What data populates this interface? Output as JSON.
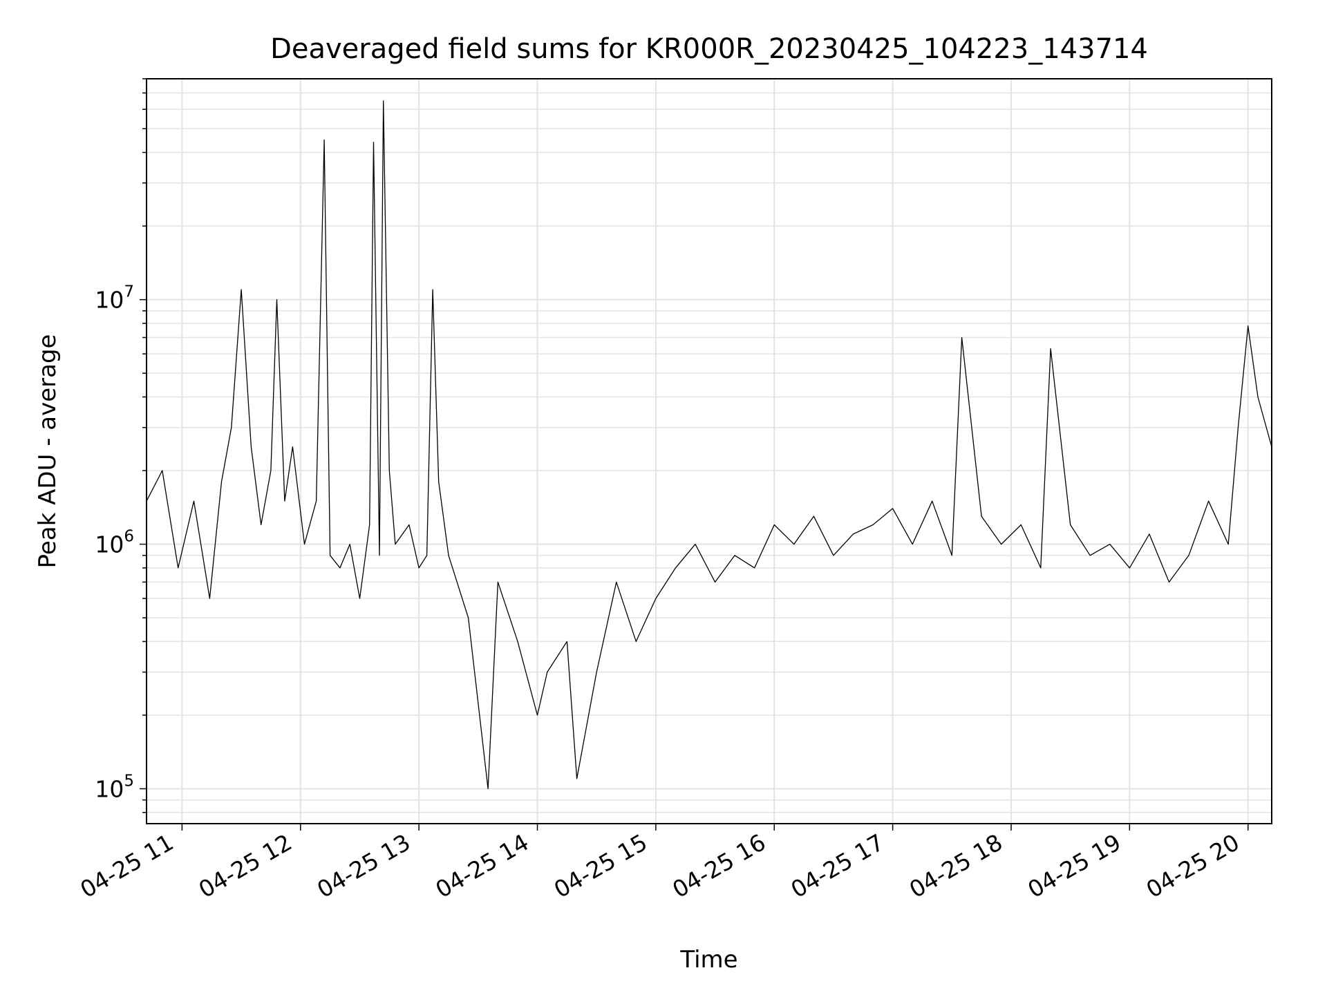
{
  "chart_data": {
    "type": "line",
    "title": "Deaveraged field sums for KR000R_20230425_104223_143714",
    "xlabel": "Time",
    "ylabel": "Peak ADU - average",
    "y_scale": "log",
    "ylim": [
      72000,
      80000000
    ],
    "xlim": [
      "2023-04-25 10:42",
      "2023-04-25 20:12"
    ],
    "grid": true,
    "line_color": "#000000",
    "x_tick_labels": [
      "04-25 11",
      "04-25 12",
      "04-25 13",
      "04-25 14",
      "04-25 15",
      "04-25 16",
      "04-25 17",
      "04-25 18",
      "04-25 19",
      "04-25 20"
    ],
    "y_tick_labels": [
      {
        "base": "10",
        "exp": "5",
        "value": 100000
      },
      {
        "base": "10",
        "exp": "6",
        "value": 1000000
      },
      {
        "base": "10",
        "exp": "7",
        "value": 10000000
      }
    ],
    "series": [
      {
        "x": [
          "2023-04-25 10:42",
          "2023-04-25 10:50",
          "2023-04-25 10:58",
          "2023-04-25 11:06",
          "2023-04-25 11:14",
          "2023-04-25 11:20",
          "2023-04-25 11:25",
          "2023-04-25 11:30",
          "2023-04-25 11:35",
          "2023-04-25 11:40",
          "2023-04-25 11:45",
          "2023-04-25 11:48",
          "2023-04-25 11:52",
          "2023-04-25 11:56",
          "2023-04-25 12:02",
          "2023-04-25 12:08",
          "2023-04-25 12:12",
          "2023-04-25 12:15",
          "2023-04-25 12:20",
          "2023-04-25 12:25",
          "2023-04-25 12:30",
          "2023-04-25 12:35",
          "2023-04-25 12:37",
          "2023-04-25 12:40",
          "2023-04-25 12:42",
          "2023-04-25 12:45",
          "2023-04-25 12:48",
          "2023-04-25 12:55",
          "2023-04-25 13:00",
          "2023-04-25 13:04",
          "2023-04-25 13:07",
          "2023-04-25 13:10",
          "2023-04-25 13:15",
          "2023-04-25 13:25",
          "2023-04-25 13:35",
          "2023-04-25 13:40",
          "2023-04-25 13:50",
          "2023-04-25 14:00",
          "2023-04-25 14:05",
          "2023-04-25 14:15",
          "2023-04-25 14:20",
          "2023-04-25 14:30",
          "2023-04-25 14:40",
          "2023-04-25 14:50",
          "2023-04-25 15:00",
          "2023-04-25 15:10",
          "2023-04-25 15:20",
          "2023-04-25 15:30",
          "2023-04-25 15:40",
          "2023-04-25 15:50",
          "2023-04-25 16:00",
          "2023-04-25 16:10",
          "2023-04-25 16:20",
          "2023-04-25 16:30",
          "2023-04-25 16:40",
          "2023-04-25 16:50",
          "2023-04-25 17:00",
          "2023-04-25 17:10",
          "2023-04-25 17:20",
          "2023-04-25 17:30",
          "2023-04-25 17:35",
          "2023-04-25 17:45",
          "2023-04-25 17:55",
          "2023-04-25 18:05",
          "2023-04-25 18:15",
          "2023-04-25 18:20",
          "2023-04-25 18:30",
          "2023-04-25 18:40",
          "2023-04-25 18:50",
          "2023-04-25 19:00",
          "2023-04-25 19:10",
          "2023-04-25 19:20",
          "2023-04-25 19:30",
          "2023-04-25 19:40",
          "2023-04-25 19:50",
          "2023-04-25 19:55",
          "2023-04-25 20:00",
          "2023-04-25 20:05",
          "2023-04-25 20:12"
        ],
        "y": [
          1500000,
          2000000,
          800000,
          1500000,
          600000,
          1800000,
          3000000,
          11000000,
          2500000,
          1200000,
          2000000,
          10000000,
          1500000,
          2500000,
          1000000,
          1500000,
          45000000,
          900000,
          800000,
          1000000,
          600000,
          1200000,
          44000000,
          900000,
          65000000,
          2000000,
          1000000,
          1200000,
          800000,
          900000,
          11000000,
          1800000,
          900000,
          500000,
          100000,
          700000,
          400000,
          200000,
          300000,
          400000,
          110000,
          300000,
          700000,
          400000,
          600000,
          800000,
          1000000,
          700000,
          900000,
          800000,
          1200000,
          1000000,
          1300000,
          900000,
          1100000,
          1200000,
          1400000,
          1000000,
          1500000,
          900000,
          7000000,
          1300000,
          1000000,
          1200000,
          800000,
          6300000,
          1200000,
          900000,
          1000000,
          800000,
          1100000,
          700000,
          900000,
          1500000,
          1000000,
          3000000,
          7800000,
          4000000,
          2500000
        ]
      }
    ]
  }
}
